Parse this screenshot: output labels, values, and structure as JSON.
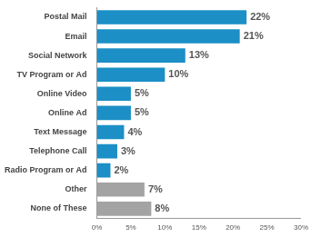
{
  "chart_data": {
    "type": "bar",
    "orientation": "horizontal",
    "categories": [
      "Postal Mail",
      "Email",
      "Social Network",
      "TV Program or Ad",
      "Online Video",
      "Online Ad",
      "Text Message",
      "Telephone Call",
      "Radio Program or Ad",
      "Other",
      "None of These"
    ],
    "values": [
      22,
      21,
      13,
      10,
      5,
      5,
      4,
      3,
      2,
      7,
      8
    ],
    "value_labels": [
      "22%",
      "21%",
      "13%",
      "10%",
      "5%",
      "5%",
      "4%",
      "3%",
      "2%",
      "7%",
      "8%"
    ],
    "colors": [
      "#1b8fc6",
      "#1b8fc6",
      "#1b8fc6",
      "#1b8fc6",
      "#1b8fc6",
      "#1b8fc6",
      "#1b8fc6",
      "#1b8fc6",
      "#1b8fc6",
      "#a3a3a3",
      "#a3a3a3"
    ],
    "xlim": [
      0,
      30
    ],
    "xticks": [
      {
        "value": 0,
        "label": "0%"
      },
      {
        "value": 5,
        "label": "5%"
      },
      {
        "value": 10,
        "label": "10%"
      },
      {
        "value": 15,
        "label": "15%"
      },
      {
        "value": 20,
        "label": "20%"
      },
      {
        "value": 25,
        "label": "25%"
      },
      {
        "value": 30,
        "label": "30%"
      }
    ],
    "grid": false,
    "data_labels": true
  }
}
